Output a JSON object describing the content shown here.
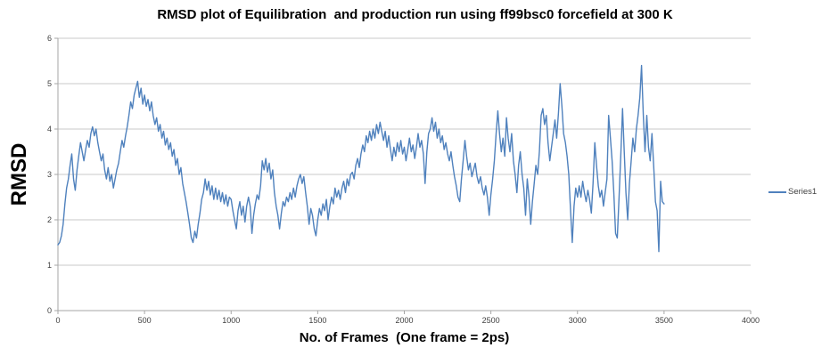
{
  "chart_data": {
    "type": "line",
    "title": "RMSD plot of Equilibration  and production run using ff99bsc0 forcefield at 300 K",
    "xlabel": "No. of Frames  (One frame = 2ps)",
    "ylabel": "RMSD",
    "xlim": [
      0,
      4000
    ],
    "ylim": [
      0,
      6
    ],
    "x_ticks": [
      0,
      500,
      1000,
      1500,
      2000,
      2500,
      3000,
      3500,
      4000
    ],
    "y_ticks": [
      0,
      1,
      2,
      3,
      4,
      5,
      6
    ],
    "grid": "horizontal",
    "legend_position": "right",
    "series": [
      {
        "name": "Series1",
        "color": "#4F81BD",
        "x_start": 0,
        "x_step": 10,
        "values": [
          1.45,
          1.5,
          1.65,
          1.9,
          2.35,
          2.7,
          2.9,
          3.2,
          3.45,
          2.9,
          2.65,
          3.1,
          3.4,
          3.7,
          3.5,
          3.3,
          3.55,
          3.75,
          3.6,
          3.9,
          4.05,
          3.85,
          4.0,
          3.7,
          3.5,
          3.3,
          3.45,
          3.1,
          2.9,
          3.15,
          2.85,
          3.0,
          2.7,
          2.9,
          3.1,
          3.25,
          3.5,
          3.75,
          3.6,
          3.85,
          4.05,
          4.3,
          4.6,
          4.45,
          4.75,
          4.9,
          5.05,
          4.7,
          4.9,
          4.55,
          4.75,
          4.5,
          4.65,
          4.4,
          4.6,
          4.3,
          4.1,
          4.25,
          3.95,
          4.1,
          3.8,
          3.95,
          3.65,
          3.8,
          3.55,
          3.7,
          3.4,
          3.55,
          3.2,
          3.35,
          3.0,
          3.15,
          2.8,
          2.6,
          2.4,
          2.15,
          1.9,
          1.6,
          1.5,
          1.75,
          1.6,
          1.9,
          2.15,
          2.45,
          2.6,
          2.9,
          2.65,
          2.85,
          2.55,
          2.75,
          2.45,
          2.7,
          2.45,
          2.65,
          2.4,
          2.6,
          2.35,
          2.55,
          2.3,
          2.5,
          2.45,
          2.2,
          2.0,
          1.8,
          2.2,
          2.4,
          2.1,
          2.3,
          1.95,
          2.3,
          2.5,
          2.3,
          1.7,
          2.1,
          2.35,
          2.55,
          2.45,
          2.75,
          3.3,
          3.1,
          3.35,
          3.05,
          3.25,
          2.9,
          3.1,
          2.6,
          2.3,
          2.1,
          1.8,
          2.15,
          2.4,
          2.3,
          2.5,
          2.4,
          2.6,
          2.45,
          2.7,
          2.5,
          2.75,
          2.9,
          3.0,
          2.8,
          2.95,
          2.6,
          2.3,
          1.9,
          2.25,
          2.1,
          1.8,
          1.65,
          2.0,
          2.25,
          2.1,
          2.35,
          2.2,
          2.45,
          2.0,
          2.3,
          2.5,
          2.35,
          2.7,
          2.5,
          2.65,
          2.45,
          2.7,
          2.85,
          2.6,
          2.9,
          2.75,
          3.0,
          3.05,
          2.9,
          3.2,
          3.35,
          3.15,
          3.45,
          3.65,
          3.5,
          3.85,
          3.7,
          3.95,
          3.75,
          4.0,
          3.8,
          4.1,
          3.9,
          4.15,
          3.95,
          3.75,
          3.95,
          3.6,
          3.85,
          3.55,
          3.3,
          3.6,
          3.4,
          3.7,
          3.5,
          3.75,
          3.45,
          3.6,
          3.3,
          3.55,
          3.8,
          3.5,
          3.65,
          3.35,
          3.6,
          3.9,
          3.6,
          3.75,
          3.45,
          2.8,
          3.5,
          3.9,
          4.0,
          4.25,
          3.95,
          4.15,
          3.8,
          4.0,
          3.7,
          3.85,
          3.55,
          3.7,
          3.45,
          3.3,
          3.5,
          3.2,
          2.95,
          2.75,
          2.5,
          2.4,
          2.9,
          3.3,
          3.75,
          3.4,
          3.1,
          3.25,
          2.95,
          3.1,
          3.25,
          2.95,
          2.8,
          2.95,
          2.7,
          2.55,
          2.75,
          2.5,
          2.1,
          2.55,
          2.9,
          3.3,
          3.9,
          4.4,
          3.9,
          3.5,
          3.8,
          3.4,
          4.25,
          3.8,
          3.5,
          3.9,
          3.3,
          3.0,
          2.6,
          3.2,
          3.5,
          3.0,
          2.7,
          2.1,
          2.9,
          2.5,
          1.9,
          2.4,
          2.8,
          3.2,
          3.0,
          3.5,
          4.3,
          4.45,
          4.1,
          4.3,
          3.7,
          3.3,
          3.6,
          3.9,
          4.2,
          3.8,
          4.35,
          5.0,
          4.5,
          3.9,
          3.7,
          3.4,
          3.0,
          2.2,
          1.5,
          2.3,
          2.7,
          2.5,
          2.75,
          2.5,
          2.85,
          2.6,
          2.4,
          2.65,
          2.45,
          2.15,
          2.8,
          3.7,
          3.2,
          2.75,
          2.5,
          2.65,
          2.3,
          2.6,
          2.9,
          4.3,
          3.8,
          3.3,
          2.6,
          1.7,
          1.6,
          2.5,
          3.4,
          4.45,
          3.5,
          2.6,
          2.0,
          2.8,
          3.3,
          3.8,
          3.5,
          4.0,
          4.3,
          4.7,
          5.4,
          4.3,
          3.5,
          4.3,
          3.6,
          3.3,
          3.9,
          3.2,
          2.4,
          2.2,
          1.3,
          2.85,
          2.4,
          2.35
        ]
      }
    ]
  },
  "colors": {
    "background": "#FFFFFF",
    "gridline": "#C8C8C8",
    "axis": "#A6A6A6",
    "tick_text": "#3F3F3F",
    "title_text": "#000000"
  }
}
